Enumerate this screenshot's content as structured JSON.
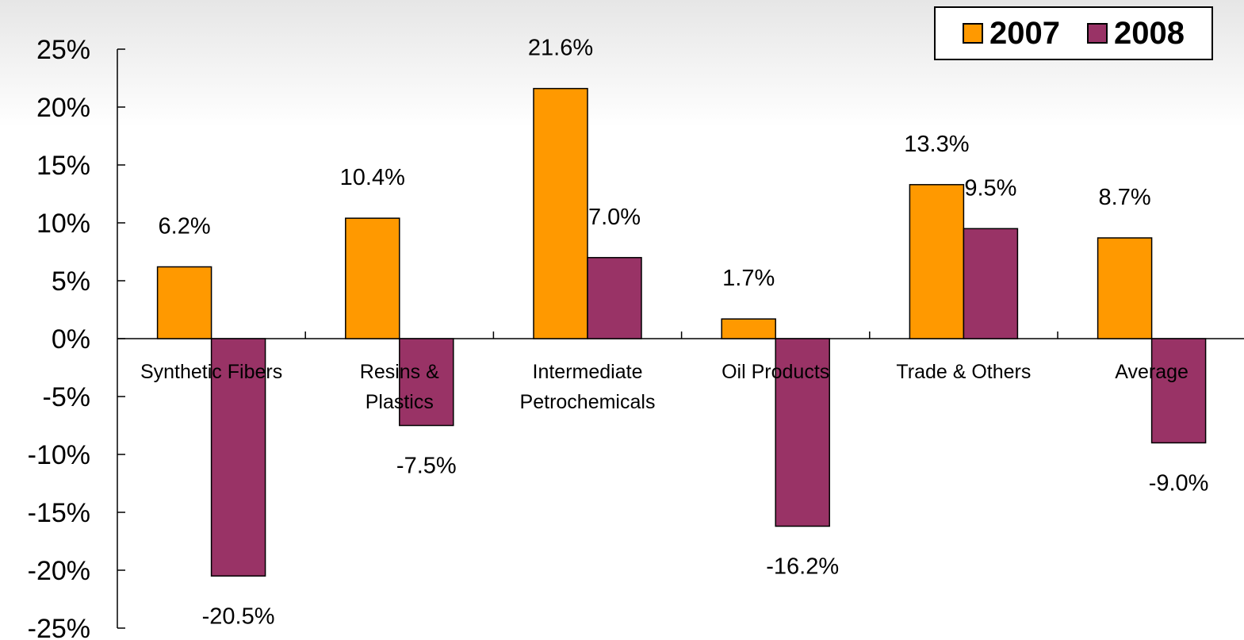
{
  "chart_data": {
    "type": "bar",
    "categories": [
      "Synthetic Fibers",
      "Resins & Plastics",
      "Intermediate Petrochemicals",
      "Oil Products",
      "Trade & Others",
      "Average"
    ],
    "category_lines": [
      [
        "Synthetic Fibers"
      ],
      [
        "Resins &",
        "Plastics"
      ],
      [
        "Intermediate",
        "Petrochemicals"
      ],
      [
        "Oil Products"
      ],
      [
        "Trade & Others"
      ],
      [
        "Average"
      ]
    ],
    "series": [
      {
        "name": "2007",
        "color": "#ff9900",
        "values": [
          6.2,
          10.4,
          21.6,
          1.7,
          13.3,
          8.7
        ],
        "labels": [
          "6.2%",
          "10.4%",
          "21.6%",
          "1.7%",
          "13.3%",
          "8.7%"
        ]
      },
      {
        "name": "2008",
        "color": "#993366",
        "values": [
          -20.5,
          -7.5,
          7.0,
          -16.2,
          9.5,
          -9.0
        ],
        "labels": [
          "-20.5%",
          "-7.5%",
          "7.0%",
          "-16.2%",
          "9.5%",
          "-9.0%"
        ]
      }
    ],
    "yticks": [
      "25%",
      "20%",
      "15%",
      "10%",
      "5%",
      "0%",
      "-5%",
      "-10%",
      "-15%",
      "-20%",
      "-25%"
    ],
    "ylim": [
      -25,
      25
    ],
    "legend_position": "top-right",
    "grid": false
  }
}
